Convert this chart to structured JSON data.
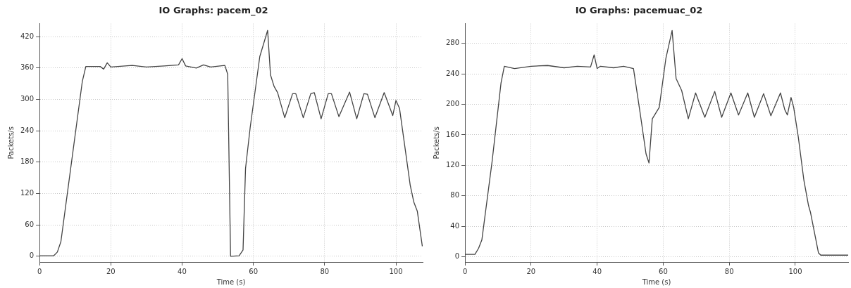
{
  "chart_data": [
    {
      "type": "line",
      "title": "IO Graphs: pacem_02",
      "xlabel": "Time (s)",
      "ylabel": "Packets/s",
      "color": "#444444",
      "marker": "none",
      "line_style": "solid",
      "legend": false,
      "grid": true,
      "xlim": [
        0,
        107.5
      ],
      "ylim": [
        -11,
        445
      ],
      "xticks": [
        0,
        20,
        40,
        60,
        80,
        100
      ],
      "yticks": [
        0,
        60,
        120,
        180,
        240,
        300,
        360,
        420
      ],
      "x": [
        0,
        4,
        5,
        6,
        8,
        12,
        13,
        17,
        18,
        19,
        20,
        26,
        30,
        35,
        39,
        40,
        41,
        44,
        46,
        48,
        52,
        52.8,
        53.6,
        56,
        57.1,
        57.8,
        59.1,
        61.8,
        64,
        64.8,
        65.8,
        66.8,
        68.8,
        71,
        71.9,
        74,
        76.1,
        77.1,
        79,
        81,
        81.9,
        84,
        87,
        89,
        91,
        92,
        94.1,
        96.7,
        99.1,
        100,
        101,
        104,
        105,
        106,
        107.4
      ],
      "values": [
        1,
        1,
        8,
        28,
        130,
        334,
        363,
        363,
        358,
        370,
        362,
        365,
        362,
        364,
        366,
        378,
        364,
        360,
        366,
        362,
        365,
        348,
        0,
        1,
        12,
        168,
        246,
        382,
        432,
        347,
        325,
        313,
        265,
        311,
        311,
        265,
        311,
        313,
        263,
        311,
        311,
        267,
        314,
        263,
        311,
        310,
        265,
        313,
        269,
        298,
        283,
        136,
        104,
        86,
        19
      ]
    },
    {
      "type": "line",
      "title": "IO Graphs: pacemuac_02",
      "xlabel": "Time (s)",
      "ylabel": "Packets/s",
      "color": "#444444",
      "marker": "none",
      "line_style": "solid",
      "legend": false,
      "grid": true,
      "xlim": [
        0,
        116
      ],
      "ylim": [
        -7,
        306
      ],
      "xticks": [
        0,
        20,
        40,
        60,
        80,
        100
      ],
      "yticks": [
        0,
        40,
        80,
        120,
        160,
        200,
        240,
        280
      ],
      "x": [
        0,
        3,
        4.1,
        5.1,
        8.2,
        10.9,
        11.9,
        15,
        20,
        25,
        30,
        34,
        38,
        39.1,
        40,
        41,
        45,
        48,
        51,
        53,
        54.8,
        55.7,
        56.7,
        58.8,
        60.8,
        62.7,
        63.9,
        65.6,
        67.6,
        69.8,
        72.6,
        75.6,
        77.7,
        80.5,
        82.8,
        85.6,
        87.6,
        90.4,
        92.6,
        95.5,
        96.8,
        97.6,
        98.7,
        99.5,
        100.9,
        102.6,
        104,
        104.6,
        107,
        107.7,
        116
      ],
      "values": [
        3,
        3,
        11,
        22,
        125,
        228,
        250,
        247,
        250,
        251,
        248,
        250,
        249,
        265,
        247,
        250,
        248,
        250,
        247,
        189,
        135,
        123,
        181,
        196,
        260,
        297,
        234,
        218,
        181,
        215,
        183,
        217,
        183,
        215,
        186,
        215,
        183,
        214,
        185,
        215,
        193,
        186,
        209,
        196,
        157,
        100,
        67,
        58,
        5,
        2,
        2
      ]
    }
  ]
}
